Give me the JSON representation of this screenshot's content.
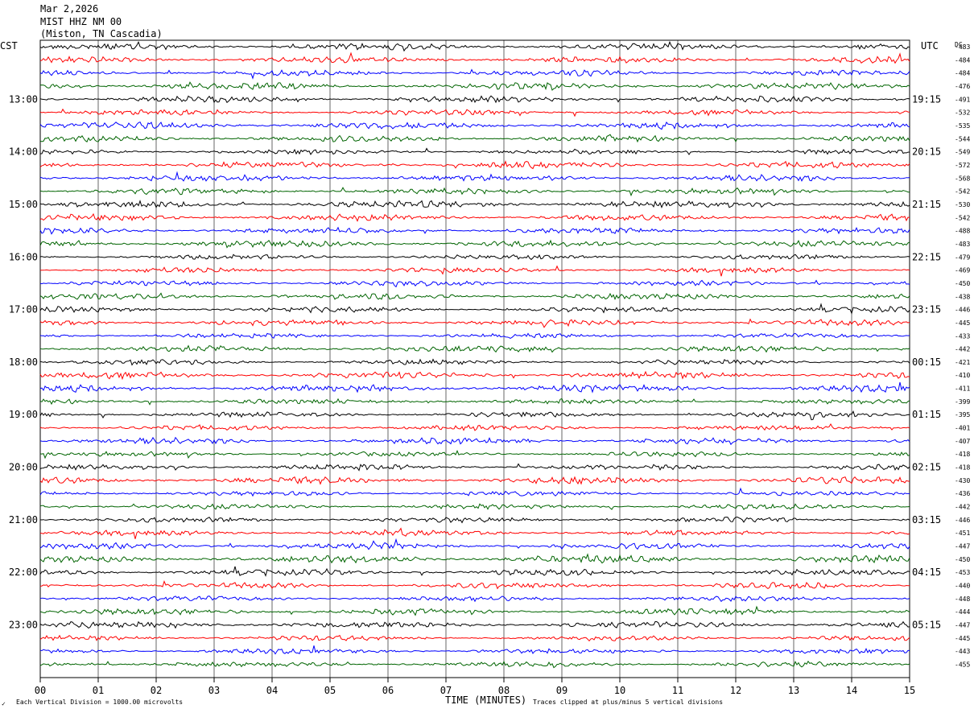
{
  "header": {
    "date": "Mar 2,2026",
    "station": "MIST HHZ NM 00",
    "location": "(Miston, TN Cascadia)"
  },
  "footer": {
    "scale_note": "Each Vertical Division = 1000.00 microvolts",
    "clip_note": "Traces clipped at plus/minus 5 vertical divisions",
    "corner_mark": "✓"
  },
  "chart_data": {
    "type": "line",
    "title": "",
    "xlabel": "TIME (MINUTES)",
    "ylabel": "",
    "xlim": [
      0,
      15
    ],
    "x_ticks": [
      "00",
      "01",
      "02",
      "03",
      "04",
      "05",
      "06",
      "07",
      "08",
      "09",
      "10",
      "11",
      "12",
      "13",
      "14",
      "15"
    ],
    "left_axis_label": "CST",
    "right_axis_label": "UTC",
    "dc_label": "DC",
    "left_hour_labels": [
      "13:00",
      "14:00",
      "15:00",
      "16:00",
      "17:00",
      "18:00",
      "19:00",
      "20:00",
      "21:00",
      "22:00",
      "23:00"
    ],
    "right_hour_labels": [
      "19:15",
      "20:15",
      "21:15",
      "22:15",
      "23:15",
      "00:15",
      "01:15",
      "02:15",
      "03:15",
      "04:15",
      "05:15"
    ],
    "trace_colors": [
      "#000000",
      "#ff0000",
      "#0000ff",
      "#006400"
    ],
    "trace_minutes_each": 15,
    "traces_per_hour": 4,
    "dc_offsets": [
      -483,
      -484,
      -484,
      -476,
      -491,
      -532,
      -535,
      -544,
      -549,
      -572,
      -568,
      -542,
      -530,
      -542,
      -488,
      -483,
      -479,
      -469,
      -450,
      -438,
      -446,
      -445,
      -433,
      -442,
      -421,
      -410,
      -411,
      -399,
      -395,
      -401,
      -407,
      -418,
      -418,
      -430,
      -436,
      -442,
      -446,
      -451,
      -447,
      -450,
      -453,
      -440,
      -448,
      -444,
      -447,
      -445,
      -443,
      -455
    ],
    "grid": true
  }
}
